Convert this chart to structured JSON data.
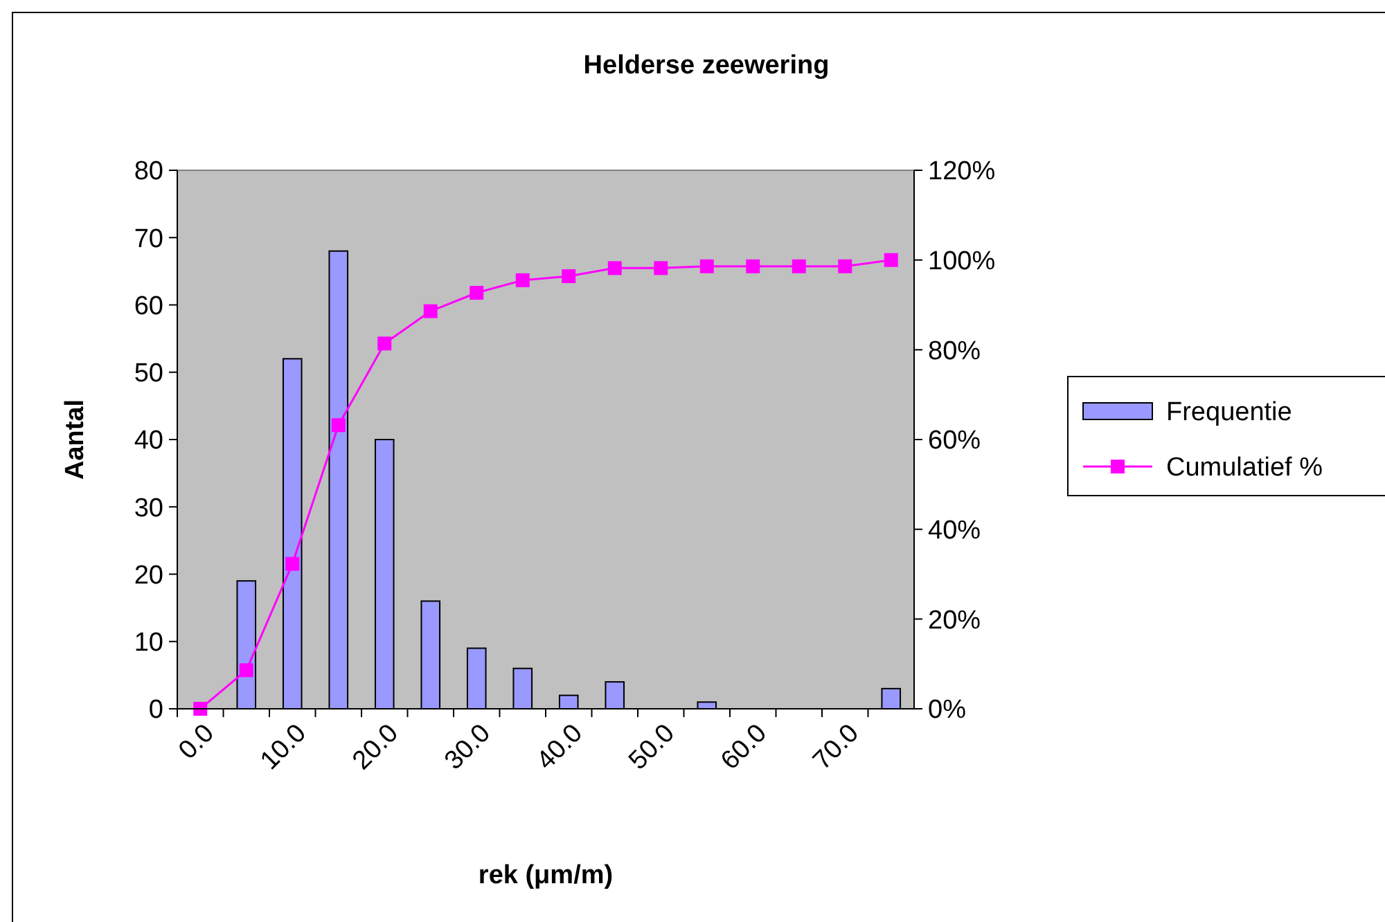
{
  "chart_data": {
    "type": "bar",
    "title": "Helderse zeewering",
    "xlabel": "rek (μm/m)",
    "ylabel": "Aantal",
    "categories": [
      "0.0",
      null,
      "10.0",
      null,
      "20.0",
      null,
      "30.0",
      null,
      "40.0",
      null,
      "50.0",
      null,
      "60.0",
      null,
      "70.0",
      null
    ],
    "series": [
      {
        "name": "Frequentie",
        "color": "#9999ff",
        "values": [
          0,
          19,
          52,
          68,
          40,
          16,
          9,
          6,
          2,
          4,
          0,
          1,
          0,
          0,
          0,
          3
        ]
      },
      {
        "name": "Cumulatief %",
        "type": "line",
        "axis": "y2",
        "color": "#ff00ff",
        "marker": "square",
        "values": [
          0,
          8.6,
          32.3,
          63.2,
          81.4,
          88.6,
          92.7,
          95.5,
          96.4,
          98.2,
          98.2,
          98.6,
          98.6,
          98.6,
          98.6,
          100
        ]
      }
    ],
    "ylim": [
      0,
      80
    ],
    "yticks": [
      0,
      10,
      20,
      30,
      40,
      50,
      60,
      70,
      80
    ],
    "y2lim": [
      0,
      120
    ],
    "y2ticks": [
      {
        "value": 0,
        "label": "0%"
      },
      {
        "value": 20,
        "label": "20%"
      },
      {
        "value": 40,
        "label": "40%"
      },
      {
        "value": 60,
        "label": "60%"
      },
      {
        "value": 80,
        "label": "80%"
      },
      {
        "value": 100,
        "label": "100%"
      },
      {
        "value": 120,
        "label": "120%"
      }
    ],
    "grid": false,
    "legend": "right"
  }
}
